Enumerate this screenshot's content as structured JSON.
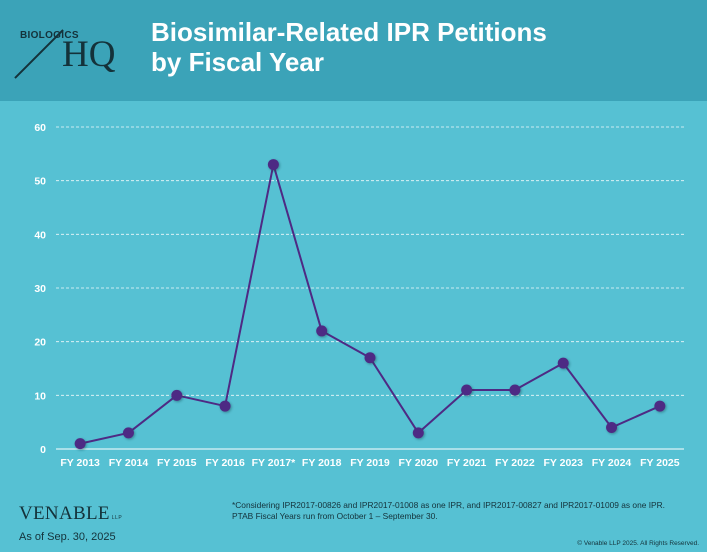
{
  "header": {
    "logo_small": "BIOLOGICS",
    "logo_large": "HQ",
    "title_line1": "Biosimilar-Related IPR Petitions",
    "title_line2": "by Fiscal Year"
  },
  "chart_data": {
    "type": "line",
    "title": "Biosimilar-Related IPR Petitions by Fiscal Year",
    "xlabel": "",
    "ylabel": "",
    "categories": [
      "FY 2013",
      "FY 2014",
      "FY 2015",
      "FY 2016",
      "FY 2017*",
      "FY 2018",
      "FY 2019",
      "FY 2020",
      "FY 2021",
      "FY 2022",
      "FY 2023",
      "FY 2024",
      "FY 2025"
    ],
    "values": [
      1,
      3,
      10,
      8,
      53,
      22,
      17,
      3,
      11,
      11,
      16,
      4,
      8
    ],
    "ylim": [
      0,
      60
    ],
    "yticks": [
      0,
      10,
      20,
      30,
      40,
      50,
      60
    ],
    "grid": true,
    "legend": "none",
    "line_color": "#4e2a84",
    "marker_color": "#4e2a84"
  },
  "footer": {
    "footnote_line1": "*Considering IPR2017-00826 and IPR2017-01008 as one IPR, and IPR2017-00827 and IPR2017-01009 as one IPR.",
    "footnote_line2": "PTAB Fiscal Years run from October 1 – September 30.",
    "brand": "VENABLE",
    "brand_suffix": "LLP",
    "as_of": "As of Sep. 30, 2025",
    "copyright": "© Venable LLP 2025. All Rights Reserved."
  }
}
